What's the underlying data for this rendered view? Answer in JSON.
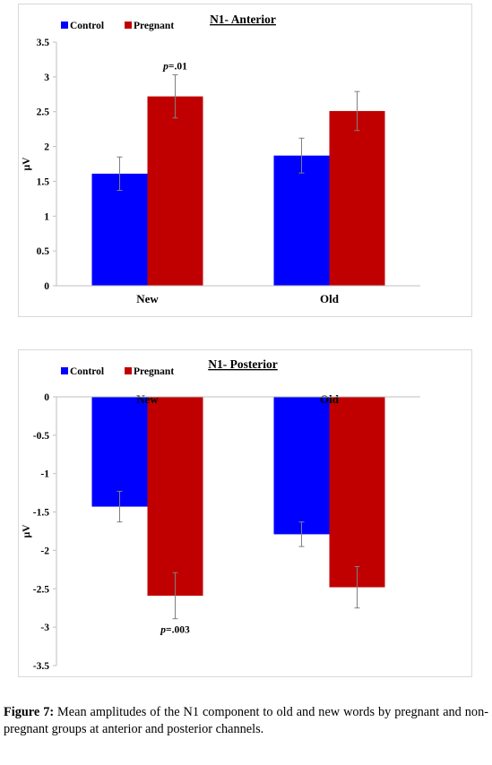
{
  "chart_data": [
    {
      "type": "bar",
      "title": "N1- Anterior",
      "ylabel": "μV",
      "categories": [
        "New",
        "Old"
      ],
      "series": [
        {
          "name": "Control",
          "color": "#0000ff",
          "values": [
            1.61,
            1.87
          ],
          "error": [
            0.24,
            0.25
          ]
        },
        {
          "name": "Pregnant",
          "color": "#c00000",
          "values": [
            2.72,
            2.51
          ],
          "error": [
            0.31,
            0.28
          ]
        }
      ],
      "ylim": [
        0,
        3.5
      ],
      "yticks": [
        "0",
        "0.5",
        "1",
        "1.5",
        "2",
        "2.5",
        "3",
        "3.5"
      ],
      "legend_position": "top-left",
      "annotation": {
        "prefix": "p",
        "text": "=.01",
        "category": "New",
        "series": "Pregnant"
      }
    },
    {
      "type": "bar",
      "title": "N1- Posterior",
      "ylabel": "μV",
      "categories": [
        "New",
        "Old"
      ],
      "series": [
        {
          "name": "Control",
          "color": "#0000ff",
          "values": [
            -1.43,
            -1.79
          ],
          "error": [
            0.2,
            0.16
          ]
        },
        {
          "name": "Pregnant",
          "color": "#c00000",
          "values": [
            -2.59,
            -2.48
          ],
          "error": [
            0.3,
            0.27
          ]
        }
      ],
      "ylim": [
        -3.5,
        0
      ],
      "yticks": [
        "0",
        "-0.5",
        "-1",
        "-1.5",
        "-2",
        "-2.5",
        "-3",
        "-3.5"
      ],
      "legend_position": "top-left",
      "annotation": {
        "prefix": "p",
        "text": "=.003",
        "category": "New",
        "series": "Pregnant"
      }
    }
  ],
  "caption": {
    "label": "Figure 7:",
    "text": " Mean amplitudes of the N1 component to old and new words by pregnant and non-pregnant groups at anterior and posterior channels."
  }
}
